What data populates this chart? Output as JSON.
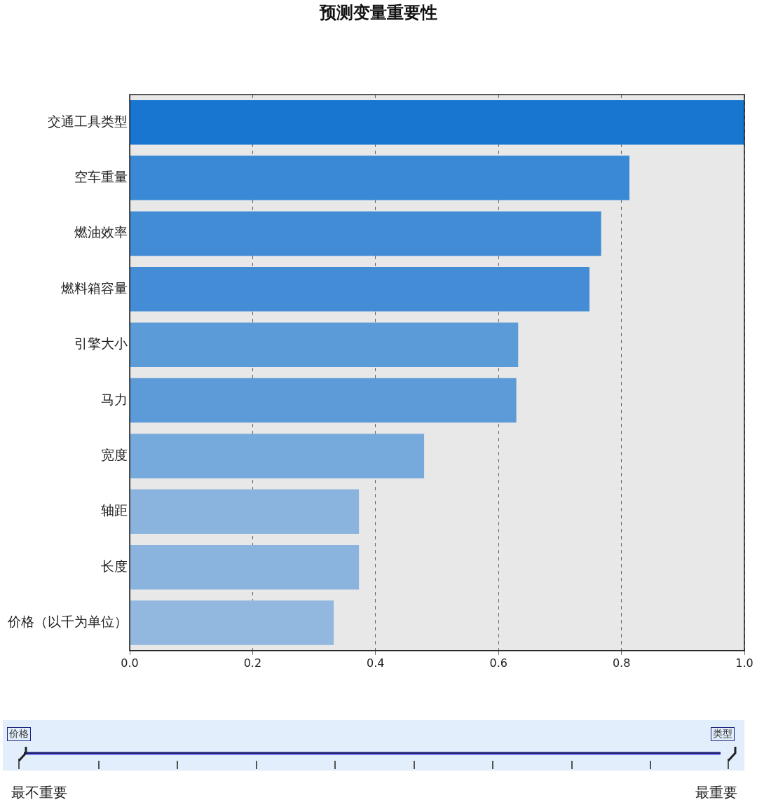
{
  "chart_data": {
    "type": "bar",
    "orientation": "horizontal",
    "title": "预测变量重要性",
    "categories": [
      "交通工具类型",
      "空车重量",
      "燃油效率",
      "燃料箱容量",
      "引擎大小",
      "马力",
      "宽度",
      "轴距",
      "长度",
      "价格（以千为单位）"
    ],
    "values": [
      1.0,
      0.813,
      0.767,
      0.748,
      0.632,
      0.629,
      0.479,
      0.373,
      0.373,
      0.332
    ],
    "colors": [
      "#1976d0",
      "#3a89d6",
      "#428cd5",
      "#448dd6",
      "#5b9bd8",
      "#5c9bd8",
      "#76a9dc",
      "#8ab4de",
      "#8ab4de",
      "#92b8df"
    ],
    "xlim": [
      0,
      1
    ],
    "xticks": [
      {
        "value": 0,
        "label": "0.0"
      },
      {
        "value": 0.2,
        "label": "0.2"
      },
      {
        "value": 0.4,
        "label": "0.4"
      },
      {
        "value": 0.6,
        "label": "0.6"
      },
      {
        "value": 0.8,
        "label": "0.8"
      },
      {
        "value": 1,
        "label": "1.0"
      }
    ],
    "grid": "x",
    "annotations": [
      "价格",
      "类型",
      "最不重要",
      "最重要"
    ]
  }
}
